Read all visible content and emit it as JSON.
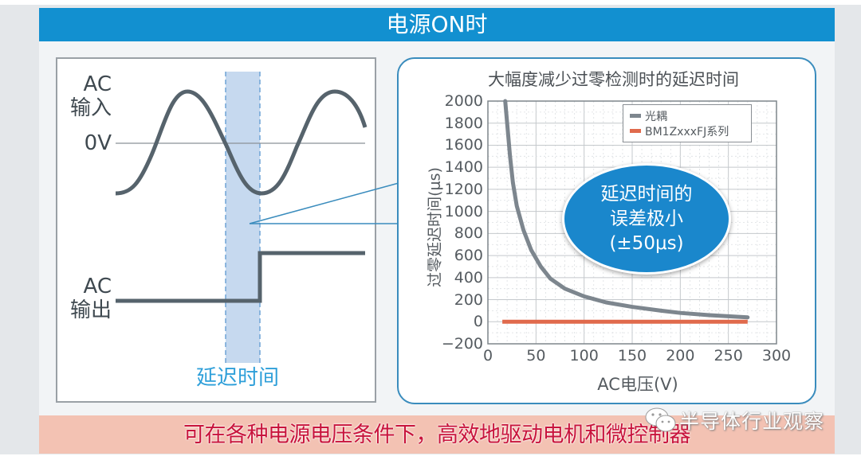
{
  "header": {
    "title": "电源ON时"
  },
  "left_diagram": {
    "ac_input_label_line1": "AC",
    "ac_input_label_line2": "输入",
    "zero_volt_label": "0V",
    "ac_output_label_line1": "AC",
    "ac_output_label_line2": "输出",
    "delay_label": "延迟时间",
    "colors": {
      "waveform": "#56636c",
      "delay_band": "#c6d9ef",
      "delay_border": "#6fa4d6",
      "delay_text": "#2e9fd9"
    }
  },
  "chart_data": {
    "type": "line",
    "title": "大幅度减少过零检测时的延迟时间",
    "xlabel": "AC电压(V)",
    "ylabel": "过零延迟时间(μs)",
    "xlim": [
      0,
      300
    ],
    "ylim": [
      -200,
      2000
    ],
    "xticks": [
      0,
      50,
      100,
      150,
      200,
      250,
      300
    ],
    "yticks": [
      -200,
      0,
      200,
      400,
      600,
      800,
      1000,
      1200,
      1400,
      1600,
      1800,
      2000
    ],
    "grid": true,
    "legend_position": "upper right",
    "series": [
      {
        "name": "光耦",
        "color": "#7d868e",
        "x": [
          18,
          20,
          23,
          26,
          30,
          37,
          45,
          55,
          65,
          80,
          100,
          123,
          150,
          180,
          200,
          230,
          270
        ],
        "y": [
          2000,
          1800,
          1500,
          1260,
          1050,
          830,
          650,
          500,
          390,
          300,
          230,
          175,
          135,
          100,
          80,
          60,
          40
        ]
      },
      {
        "name": "BM1ZxxxFJ系列",
        "color": "#e06a4c",
        "x": [
          15,
          270
        ],
        "y": [
          0,
          0
        ]
      }
    ],
    "annotation": {
      "line1": "延迟时间的",
      "line2": "误差极小",
      "line3": "(±50μs)"
    }
  },
  "footer": {
    "text": "可在各种电源电压条件下，高效地驱动电机和微控制器"
  },
  "watermark": {
    "text": "半导体行业观察",
    "icon": "wechat-icon"
  },
  "colors": {
    "header_bg": "#1290d0",
    "footer_bg": "#f3c2b3",
    "footer_text": "#c8143c",
    "panel_border": "#3a8cbd"
  }
}
